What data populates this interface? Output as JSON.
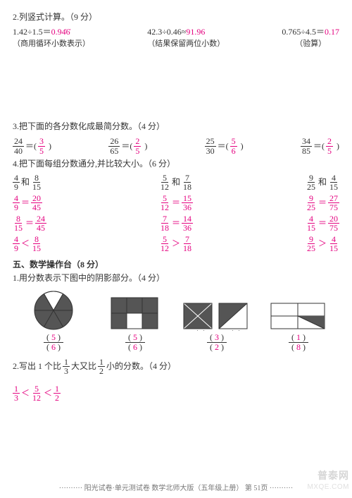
{
  "q2": {
    "title": "2.列竖式计算。（9 分）",
    "items": [
      {
        "expr": "1.42÷1.5＝",
        "ans": "0.94̇6̇",
        "note": "（商用循环小数表示）"
      },
      {
        "expr": "42.3÷0.46≈",
        "ans": "91.96",
        "note": "（结果保留两位小数）"
      },
      {
        "expr": "0.765÷4.5＝",
        "ans": "0.17",
        "note": "（验算）"
      }
    ]
  },
  "q3": {
    "title": "3.把下面的各分数化成最简分数。（4 分）",
    "items": [
      {
        "on": "24",
        "od": "40",
        "an": "3",
        "ad": "5"
      },
      {
        "on": "26",
        "od": "65",
        "an": "2",
        "ad": "5"
      },
      {
        "on": "25",
        "od": "30",
        "an": "5",
        "ad": "6"
      },
      {
        "on": "34",
        "od": "85",
        "an": "2",
        "ad": "5"
      }
    ]
  },
  "q4": {
    "title": "4.把下面每组分数通分,并比较大小。（6 分）",
    "cols": [
      {
        "pair": {
          "n1": "4",
          "d1": "9",
          "n2": "8",
          "d2": "15"
        },
        "eq1": {
          "ln": "4",
          "ld": "9",
          "rn": "20",
          "rd": "45"
        },
        "eq2": {
          "ln": "8",
          "ld": "15",
          "rn": "24",
          "rd": "45"
        },
        "cmp": {
          "ln": "4",
          "ld": "9",
          "op": "＜",
          "rn": "8",
          "rd": "15"
        }
      },
      {
        "pair": {
          "n1": "5",
          "d1": "12",
          "n2": "7",
          "d2": "18"
        },
        "eq1": {
          "ln": "5",
          "ld": "12",
          "rn": "15",
          "rd": "36"
        },
        "eq2": {
          "ln": "7",
          "ld": "18",
          "rn": "14",
          "rd": "36"
        },
        "cmp": {
          "ln": "5",
          "ld": "12",
          "op": "＞",
          "rn": "7",
          "rd": "18"
        }
      },
      {
        "pair": {
          "n1": "9",
          "d1": "25",
          "n2": "4",
          "d2": "15"
        },
        "eq1": {
          "ln": "9",
          "ld": "25",
          "rn": "27",
          "rd": "75"
        },
        "eq2": {
          "ln": "4",
          "ld": "15",
          "rn": "20",
          "rd": "75"
        },
        "cmp": {
          "ln": "9",
          "ld": "25",
          "op": "＞",
          "rn": "4",
          "rd": "15"
        }
      }
    ],
    "and": "和",
    "eq": "＝"
  },
  "sec5": {
    "title": "五、数学操作台（8 分）"
  },
  "q51": {
    "title": "1.用分数表示下图中的阴影部分。（4 分）",
    "answers": [
      {
        "n": "5",
        "d": "6"
      },
      {
        "n": "5",
        "d": "6"
      },
      {
        "n": "3",
        "d": "2"
      },
      {
        "n": "1",
        "d": "8"
      }
    ],
    "svgFill": "#555"
  },
  "q52": {
    "title_pre": "2.写出 1 个比",
    "f1": {
      "n": "1",
      "d": "3"
    },
    "mid": "大又比",
    "f2": {
      "n": "1",
      "d": "2"
    },
    "title_post": "小的分数。（4 分）",
    "ans": {
      "ln": "1",
      "ld": "3",
      "mn": "5",
      "md": "12",
      "rn": "1",
      "rd": "2",
      "lt": "＜"
    }
  },
  "footer": "·········· 阳光试卷·单元测试卷  数学北师大版（五年级上册）  第 51页 ··········",
  "wm1": "普泰网",
  "wm2": "MXQE.COM"
}
